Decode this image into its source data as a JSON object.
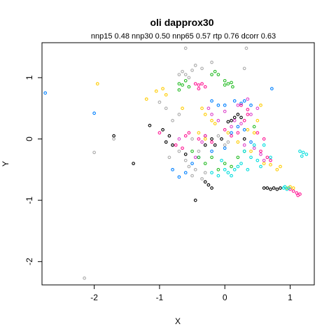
{
  "chart_data": {
    "type": "scatter",
    "title": "oli dapprox30",
    "subtitle": "nnp15 0.48 nnp30 0.50 nnp65 0.57 rtp 0.76 dcorr 0.63",
    "xlabel": "X",
    "ylabel": "Y",
    "xlim": [
      -2.8,
      1.37
    ],
    "ylim": [
      -2.38,
      1.57
    ],
    "x_ticks": [
      -2,
      -1,
      0,
      1
    ],
    "y_ticks": [
      -2,
      -1,
      0,
      1
    ],
    "x_tick_labels": [
      "-2",
      "-1",
      "0",
      "1"
    ],
    "y_tick_labels": [
      "-2",
      "-1",
      "0",
      "1"
    ],
    "grid": false,
    "legend": "none",
    "series": [
      {
        "color": "#000000",
        "points": [
          [
            -1.7,
            0.05
          ],
          [
            -1.4,
            -0.4
          ],
          [
            -1.15,
            0.22
          ],
          [
            -0.95,
            0.15
          ],
          [
            -0.85,
            0.05
          ],
          [
            -0.9,
            -0.05
          ],
          [
            -0.8,
            -0.1
          ],
          [
            -0.3,
            -0.1
          ],
          [
            -0.2,
            0.0
          ],
          [
            -0.15,
            -0.1
          ],
          [
            0.15,
            0.35
          ],
          [
            0.2,
            0.4
          ],
          [
            0.25,
            0.35
          ],
          [
            0.1,
            0.3
          ],
          [
            0.05,
            0.28
          ],
          [
            -0.3,
            -0.7
          ],
          [
            -0.25,
            -0.75
          ],
          [
            -0.2,
            -0.8
          ],
          [
            -0.45,
            -1.0
          ],
          [
            0.65,
            -0.8
          ],
          [
            0.7,
            -0.82
          ],
          [
            0.75,
            -0.8
          ],
          [
            0.8,
            -0.82
          ],
          [
            0.85,
            -0.8
          ],
          [
            0.6,
            -0.8
          ],
          [
            -0.6,
            -0.25
          ],
          [
            -0.05,
            0.0
          ],
          [
            0.3,
            0.0
          ]
        ]
      },
      {
        "color": "#aaaaaa",
        "points": [
          [
            -2.15,
            -2.27
          ],
          [
            -2.0,
            -0.22
          ],
          [
            -1.7,
            0.0
          ],
          [
            -0.6,
            1.48
          ],
          [
            0.33,
            1.48
          ],
          [
            -0.7,
            1.05
          ],
          [
            -0.65,
            1.1
          ],
          [
            -0.6,
            1.05
          ],
          [
            -0.55,
            1.0
          ],
          [
            -0.5,
            1.12
          ],
          [
            -0.45,
            1.2
          ],
          [
            -0.35,
            1.15
          ],
          [
            -0.2,
            1.25
          ],
          [
            0.3,
            1.15
          ],
          [
            -1.0,
            0.6
          ],
          [
            -0.9,
            0.5
          ],
          [
            -0.8,
            0.3
          ],
          [
            -0.7,
            0.4
          ],
          [
            -0.5,
            0.0
          ],
          [
            -0.4,
            -0.2
          ],
          [
            -0.6,
            -0.35
          ],
          [
            -0.55,
            -0.45
          ],
          [
            -0.45,
            -0.5
          ],
          [
            -0.5,
            -0.6
          ],
          [
            -0.35,
            -0.65
          ],
          [
            -0.3,
            -0.55
          ],
          [
            -0.85,
            -0.3
          ],
          [
            -0.7,
            -0.2
          ],
          [
            0.0,
            -0.1
          ],
          [
            0.05,
            -0.05
          ],
          [
            -0.1,
            0.05
          ]
        ]
      },
      {
        "color": "#0080ff",
        "points": [
          [
            -2.75,
            0.75
          ],
          [
            -2.0,
            0.42
          ],
          [
            0.72,
            0.82
          ],
          [
            -0.2,
            0.62
          ],
          [
            -0.1,
            0.55
          ],
          [
            0.0,
            0.55
          ],
          [
            0.15,
            0.62
          ],
          [
            0.25,
            0.58
          ],
          [
            0.3,
            0.62
          ],
          [
            0.4,
            0.55
          ],
          [
            -0.6,
            -0.55
          ],
          [
            -0.7,
            -0.62
          ],
          [
            -0.8,
            -0.5
          ],
          [
            -0.5,
            -0.4
          ],
          [
            -0.4,
            -0.3
          ],
          [
            -0.2,
            -0.2
          ],
          [
            0.0,
            -0.15
          ],
          [
            0.1,
            0.1
          ],
          [
            0.2,
            0.2
          ],
          [
            0.3,
            0.15
          ],
          [
            0.4,
            -0.05
          ],
          [
            -0.3,
            0.05
          ]
        ]
      },
      {
        "color": "#22bb22",
        "points": [
          [
            -0.7,
            0.8
          ],
          [
            -0.65,
            0.88
          ],
          [
            -0.6,
            0.95
          ],
          [
            -0.55,
            0.85
          ],
          [
            -0.7,
            0.9
          ],
          [
            -0.2,
            1.05
          ],
          [
            -0.15,
            1.1
          ],
          [
            -0.1,
            1.05
          ],
          [
            0.0,
            0.95
          ],
          [
            0.05,
            0.9
          ],
          [
            0.1,
            0.92
          ],
          [
            0.0,
            0.88
          ],
          [
            0.12,
            0.85
          ],
          [
            -0.5,
            -0.2
          ],
          [
            -0.4,
            -0.3
          ],
          [
            -0.3,
            -0.4
          ],
          [
            -0.2,
            -0.3
          ],
          [
            -0.1,
            -0.5
          ],
          [
            0.0,
            -0.4
          ],
          [
            0.2,
            -0.3
          ],
          [
            0.3,
            -0.2
          ],
          [
            0.45,
            0.2
          ],
          [
            0.1,
            -0.45
          ]
        ]
      },
      {
        "color": "#ff1493",
        "points": [
          [
            -0.45,
            0.9
          ],
          [
            -0.4,
            0.88
          ],
          [
            -0.35,
            0.9
          ],
          [
            -0.3,
            0.85
          ],
          [
            -0.4,
            0.82
          ],
          [
            -1.0,
            0.1
          ],
          [
            -0.75,
            -0.1
          ],
          [
            -0.65,
            -0.15
          ],
          [
            -0.6,
            0.05
          ],
          [
            -0.55,
            0.1
          ],
          [
            -0.4,
            0.0
          ],
          [
            -0.3,
            0.05
          ],
          [
            -0.2,
            -0.05
          ],
          [
            0.0,
            0.15
          ],
          [
            0.1,
            0.05
          ],
          [
            0.2,
            0.1
          ],
          [
            0.3,
            0.3
          ],
          [
            0.35,
            0.4
          ],
          [
            0.5,
            0.1
          ],
          [
            0.6,
            0.0
          ],
          [
            0.55,
            -0.2
          ],
          [
            0.65,
            -0.3
          ],
          [
            0.7,
            -0.35
          ],
          [
            1.05,
            -0.85
          ],
          [
            1.1,
            -0.88
          ],
          [
            1.15,
            -0.9
          ],
          [
            1.12,
            -0.92
          ],
          [
            1.0,
            -0.82
          ],
          [
            0.25,
            0.55
          ],
          [
            0.35,
            0.48
          ]
        ]
      },
      {
        "color": "#ffcc00",
        "points": [
          [
            -1.95,
            0.9
          ],
          [
            -0.95,
            0.82
          ],
          [
            -1.05,
            0.78
          ],
          [
            -0.9,
            0.72
          ],
          [
            -1.2,
            0.65
          ],
          [
            -0.65,
            0.5
          ],
          [
            -0.35,
            0.5
          ],
          [
            -0.3,
            0.4
          ],
          [
            -0.2,
            0.3
          ],
          [
            -0.15,
            0.25
          ],
          [
            -0.4,
            0.1
          ],
          [
            -0.3,
            0.0
          ],
          [
            0.05,
            0.1
          ],
          [
            0.2,
            -0.05
          ],
          [
            0.35,
            0.15
          ],
          [
            0.5,
            0.3
          ],
          [
            0.45,
            0.1
          ],
          [
            0.4,
            -0.2
          ],
          [
            0.6,
            -0.4
          ],
          [
            0.8,
            -0.5
          ],
          [
            0.7,
            -0.42
          ],
          [
            0.85,
            -0.45
          ],
          [
            0.95,
            -0.8
          ],
          [
            1.0,
            -0.78
          ],
          [
            1.05,
            -0.8
          ],
          [
            0.55,
            0.55
          ]
        ]
      },
      {
        "color": "#00dddd",
        "points": [
          [
            1.15,
            -0.2
          ],
          [
            1.2,
            -0.22
          ],
          [
            1.25,
            -0.25
          ],
          [
            1.18,
            -0.28
          ],
          [
            0.9,
            -0.8
          ],
          [
            0.92,
            -0.78
          ],
          [
            0.95,
            -0.82
          ],
          [
            0.98,
            -0.8
          ],
          [
            -0.05,
            -0.35
          ],
          [
            0.0,
            -0.5
          ],
          [
            0.05,
            -0.55
          ],
          [
            0.15,
            -0.5
          ],
          [
            0.2,
            -0.45
          ],
          [
            0.25,
            -0.4
          ],
          [
            0.35,
            -0.5
          ],
          [
            0.3,
            -0.2
          ],
          [
            0.4,
            -0.3
          ],
          [
            0.5,
            -0.35
          ],
          [
            0.55,
            -0.45
          ],
          [
            -0.1,
            -0.6
          ],
          [
            -0.2,
            -0.55
          ],
          [
            0.1,
            -0.6
          ],
          [
            0.45,
            -0.1
          ],
          [
            0.6,
            -0.1
          ],
          [
            0.7,
            -0.3
          ]
        ]
      },
      {
        "color": "#dd44cc",
        "points": [
          [
            0.1,
            0.2
          ],
          [
            0.15,
            0.3
          ],
          [
            0.25,
            0.25
          ],
          [
            0.2,
            0.55
          ],
          [
            0.35,
            0.65
          ],
          [
            0.3,
            -0.1
          ],
          [
            0.45,
            -0.15
          ],
          [
            0.55,
            -0.25
          ],
          [
            0.6,
            -0.35
          ],
          [
            -0.1,
            0.3
          ],
          [
            -0.2,
            0.4
          ],
          [
            0.0,
            0.45
          ],
          [
            -0.35,
            -0.05
          ],
          [
            -0.45,
            -0.3
          ],
          [
            -0.7,
            0.0
          ],
          [
            0.4,
            0.4
          ],
          [
            0.5,
            0.5
          ],
          [
            -0.25,
            0.5
          ]
        ]
      }
    ]
  }
}
